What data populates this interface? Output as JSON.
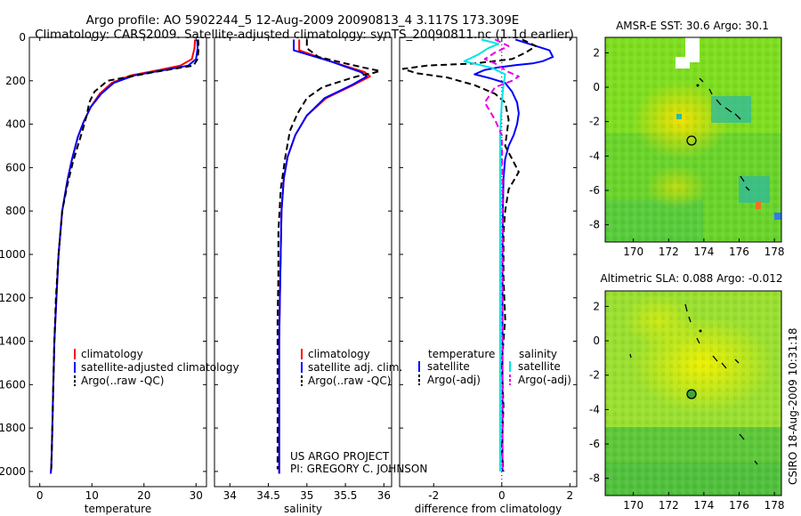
{
  "title": {
    "line1": "Argo profile: AO 5902244_5 12-Aug-2009 20090813_4 3.117S 173.309E",
    "line2": "Climatology: CARS2009. Satellite-adjusted climatology: synTS_20090811.nc (1.1d earlier)"
  },
  "side_label": "CSIRO 18-Aug-2009 10:31:18",
  "project": {
    "line1": "US ARGO PROJECT",
    "line2": "PI: GREGORY C. JOHNSON"
  },
  "colors": {
    "climatology": "#ff0000",
    "satellite": "#0000ff",
    "argo": "#000000",
    "cyan": "#00e5e5",
    "magenta": "#e600e6"
  },
  "chart_data": [
    {
      "type": "line",
      "id": "temperature",
      "xlabel": "temperature",
      "ylabel": "",
      "xlim": [
        -2,
        32
      ],
      "ylim": [
        2070,
        0
      ],
      "y_inverted": true,
      "xticks": [
        0,
        10,
        20,
        30
      ],
      "yticks": [
        0,
        200,
        400,
        600,
        800,
        1000,
        1200,
        1400,
        1600,
        1800,
        2000
      ],
      "legend": [
        "climatology",
        "satellite-adjusted climatology",
        "Argo(..raw -QC)"
      ],
      "series": [
        {
          "name": "climatology",
          "style": "solid",
          "color": "#ff0000",
          "x": [
            29.8,
            29.7,
            29.2,
            27,
            23,
            17.5,
            13.8,
            11.5,
            9.8,
            8.4,
            7.3,
            6.2,
            5.3,
            4.3,
            3.6,
            3.2,
            2.8,
            2.6,
            2.4,
            2.3,
            2.2,
            2.1
          ],
          "y": [
            10,
            50,
            100,
            130,
            150,
            175,
            210,
            260,
            320,
            390,
            460,
            560,
            660,
            800,
            1000,
            1200,
            1400,
            1600,
            1800,
            1900,
            1980,
            2010
          ]
        },
        {
          "name": "satellite-adjusted climatology",
          "style": "solid",
          "color": "#0000ff",
          "x": [
            30.2,
            30.3,
            30,
            28.5,
            24,
            18.2,
            14.2,
            11.8,
            9.8,
            8.4,
            7.3,
            6.2,
            5.3,
            4.3,
            3.6,
            3.2,
            2.8,
            2.6,
            2.4,
            2.3,
            2.2,
            2.1
          ],
          "y": [
            10,
            50,
            100,
            130,
            150,
            175,
            210,
            260,
            320,
            390,
            460,
            560,
            660,
            800,
            1000,
            1200,
            1400,
            1600,
            1800,
            1900,
            1980,
            2010
          ]
        },
        {
          "name": "Argo(..raw -QC)",
          "style": "dashed",
          "color": "#000000",
          "x": [
            30.4,
            30.5,
            30.3,
            29.5,
            22,
            13,
            10.5,
            9.5,
            9,
            8.2,
            7.3,
            6.3,
            5.3,
            4.3,
            3.6,
            3.1,
            2.8,
            2.6,
            2.4,
            2.3,
            2.2
          ],
          "y": [
            10,
            50,
            100,
            130,
            160,
            200,
            250,
            300,
            360,
            430,
            500,
            580,
            680,
            800,
            1000,
            1200,
            1400,
            1600,
            1800,
            1900,
            1990
          ]
        }
      ]
    },
    {
      "type": "line",
      "id": "salinity",
      "xlabel": "salinity",
      "ylabel": "",
      "xlim": [
        33.8,
        36.1
      ],
      "ylim": [
        2070,
        0
      ],
      "y_inverted": true,
      "xticks": [
        34,
        34.5,
        35,
        35.5,
        36
      ],
      "legend": [
        "climatology",
        "satellite adj. clim.",
        "Argo(..raw -QC)"
      ],
      "series": [
        {
          "name": "climatology",
          "style": "solid",
          "color": "#ff0000",
          "x": [
            34.9,
            34.9,
            35.3,
            35.75,
            35.82,
            35.6,
            35.25,
            35.0,
            34.85,
            34.75,
            34.7,
            34.67,
            34.66,
            34.65,
            34.64,
            34.64,
            34.64,
            34.64,
            34.64,
            34.64
          ],
          "y": [
            10,
            60,
            110,
            160,
            180,
            220,
            280,
            360,
            450,
            550,
            650,
            800,
            1000,
            1200,
            1400,
            1600,
            1800,
            1900,
            1980,
            2010
          ]
        },
        {
          "name": "satellite adj. clim.",
          "style": "solid",
          "color": "#0000ff",
          "x": [
            34.83,
            34.83,
            35.3,
            35.7,
            35.78,
            35.58,
            35.23,
            35.0,
            34.85,
            34.75,
            34.7,
            34.67,
            34.66,
            34.65,
            34.64,
            34.64,
            34.64,
            34.64,
            34.64,
            34.64
          ],
          "y": [
            10,
            60,
            110,
            160,
            180,
            220,
            280,
            360,
            450,
            550,
            650,
            800,
            1000,
            1200,
            1400,
            1600,
            1800,
            1900,
            1980,
            2010
          ]
        },
        {
          "name": "Argo(..raw -QC)",
          "style": "dashed",
          "color": "#000000",
          "x": [
            35.0,
            35.0,
            35.15,
            35.5,
            35.75,
            35.95,
            35.85,
            35.7,
            35.55,
            35.2,
            35.0,
            34.88,
            34.78,
            34.72,
            34.66,
            34.63,
            34.63,
            34.62,
            34.62,
            34.62,
            34.62
          ],
          "y": [
            10,
            50,
            90,
            120,
            140,
            155,
            165,
            175,
            190,
            230,
            280,
            350,
            430,
            550,
            700,
            900,
            1100,
            1300,
            1500,
            1700,
            1990
          ]
        }
      ]
    },
    {
      "type": "line",
      "id": "difference",
      "xlabel": "difference from climatology",
      "ylabel": "",
      "xlim": [
        -3,
        2.2
      ],
      "ylim": [
        2070,
        0
      ],
      "y_inverted": true,
      "xticks": [
        -2,
        0,
        2
      ],
      "legend_headers": [
        "temperature",
        "salinity"
      ],
      "legend": [
        "satellite",
        "Argo(-adj)",
        "satellite",
        "Argo(-adj)"
      ],
      "series": [
        {
          "name": "temperature satellite",
          "style": "solid",
          "color": "#0000ff",
          "x": [
            0.4,
            0.8,
            1.4,
            1.5,
            1.2,
            0.9,
            0.4,
            -0.1,
            -0.5,
            -0.8,
            -0.3,
            0.1,
            0.3,
            0.45,
            0.5,
            0.45,
            0.35,
            0.2,
            0.1,
            0.05,
            0.03,
            0.02,
            0.02,
            0.02,
            0.02
          ],
          "y": [
            10,
            30,
            60,
            90,
            110,
            120,
            128,
            138,
            150,
            170,
            190,
            210,
            250,
            300,
            350,
            400,
            450,
            500,
            560,
            650,
            800,
            1000,
            1400,
            1800,
            2000
          ]
        },
        {
          "name": "temperature Argo(-adj)",
          "style": "dashed",
          "color": "#000000",
          "x": [
            0.6,
            1.0,
            0.7,
            0.3,
            -0.8,
            -2.2,
            -2.9,
            -2.5,
            -1.6,
            -0.8,
            -0.2,
            0.1,
            0.2,
            0.1,
            0.3,
            0.5,
            0.2,
            0.1,
            0.05,
            0.05,
            0.1,
            0.0,
            0.05,
            0.0,
            0.05
          ],
          "y": [
            10,
            40,
            70,
            100,
            120,
            130,
            145,
            165,
            185,
            220,
            260,
            300,
            380,
            500,
            560,
            620,
            700,
            800,
            900,
            1100,
            1300,
            1500,
            1700,
            1900,
            2000
          ]
        },
        {
          "name": "salinity satellite",
          "style": "solid",
          "color": "#00e5e5",
          "x": [
            -0.6,
            -0.1,
            -0.4,
            -0.7,
            -1.1,
            -0.3,
            0.1,
            0.05,
            0.0,
            -0.05,
            -0.05,
            -0.05,
            -0.05,
            -0.05,
            -0.05,
            -0.05
          ],
          "y": [
            10,
            30,
            50,
            80,
            110,
            140,
            170,
            220,
            300,
            450,
            600,
            800,
            1000,
            1400,
            1800,
            2000
          ]
        },
        {
          "name": "salinity Argo(-adj)",
          "style": "dashed",
          "color": "#e600e6",
          "x": [
            -0.2,
            0.2,
            -0.2,
            -0.5,
            -0.2,
            0.0,
            0.2,
            0.5,
            0.3,
            -0.2,
            -0.5,
            -0.2,
            0.0,
            0.02,
            0.02,
            0.02
          ],
          "y": [
            10,
            40,
            70,
            100,
            120,
            140,
            160,
            180,
            200,
            230,
            300,
            380,
            450,
            700,
            1200,
            2000
          ]
        }
      ]
    },
    {
      "type": "heatmap",
      "id": "sst",
      "title": "AMSR-E SST: 30.6 Argo: 30.1",
      "xlim": [
        168.4,
        178.4
      ],
      "ylim": [
        -9,
        2.9
      ],
      "xticks": [
        170,
        172,
        174,
        176,
        178
      ],
      "yticks": [
        2,
        0,
        -2,
        -4,
        -6,
        -8
      ],
      "float_position": {
        "x": 173.3,
        "y": -3.1
      }
    },
    {
      "type": "heatmap",
      "id": "sla",
      "title": "Altimetric SLA: 0.088 Argo: -0.012",
      "xlim": [
        168.4,
        178.4
      ],
      "ylim": [
        -9,
        2.9
      ],
      "xticks": [
        170,
        172,
        174,
        176,
        178
      ],
      "yticks": [
        2,
        0,
        -2,
        -4,
        -6,
        -8
      ],
      "float_position": {
        "x": 173.3,
        "y": -3.1
      }
    }
  ]
}
